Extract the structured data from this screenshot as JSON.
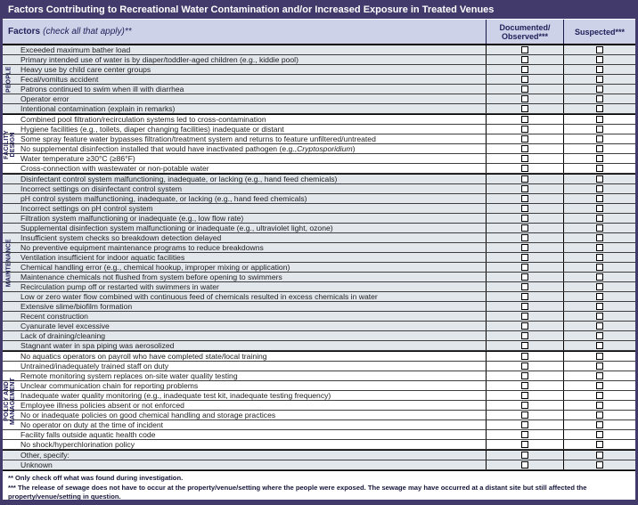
{
  "title": "Factors Contributing to Recreational Water Contamination and/or Increased Exposure in Treated Venues",
  "header": {
    "factors_bold": "Factors",
    "factors_italic": "(check all that apply)**",
    "documented_line1": "Documented/",
    "documented_line2": "Observed***",
    "suspected": "Suspected***"
  },
  "sections": [
    {
      "name": "people",
      "label_lines": [
        "PEOPLE"
      ],
      "shaded": true,
      "rows": [
        {
          "label": "Exceeded maximum bather load",
          "documented": false,
          "suspected": false
        },
        {
          "label": "Primary intended use of water is by diaper/toddler-aged children (e.g., kiddie pool)",
          "documented": false,
          "suspected": false
        },
        {
          "label": "Heavy use by child care center groups",
          "documented": false,
          "suspected": false
        },
        {
          "label": "Fecal/vomitus accident",
          "documented": false,
          "suspected": false
        },
        {
          "label": "Patrons continued to swim when ill with diarrhea",
          "documented": false,
          "suspected": false
        },
        {
          "label": "Operator error",
          "documented": false,
          "suspected": false
        },
        {
          "label": "Intentional contamination (explain in remarks)",
          "documented": false,
          "suspected": false
        }
      ]
    },
    {
      "name": "facility-design",
      "label_lines": [
        "FACILITY",
        "DESIGN"
      ],
      "shaded": false,
      "rows": [
        {
          "label": "Combined pool filtration/recirculation systems led to cross-contamination",
          "documented": false,
          "suspected": false
        },
        {
          "label": "Hygiene facilities (e.g., toilets, diaper changing facilities) inadequate or distant",
          "documented": false,
          "suspected": false
        },
        {
          "label": "Some spray feature water bypasses filtration/treatment system and returns to feature unfiltered/untreated",
          "documented": false,
          "suspected": false
        },
        {
          "label": "No supplemental disinfection installed that would have inactivated pathogen (e.g., Cryptosporidium)",
          "italic": "Cryptosporidium",
          "documented": false,
          "suspected": false
        },
        {
          "label": "Water temperature ≥30°C (≥86°F)",
          "documented": false,
          "suspected": false
        },
        {
          "label": "Cross-connection with wastewater or non-potable water",
          "documented": false,
          "suspected": false
        }
      ]
    },
    {
      "name": "maintenance",
      "label_lines": [
        "MAINTENANCE"
      ],
      "shaded": true,
      "rows": [
        {
          "label": "Disinfectant control system malfunctioning, inadequate, or lacking (e.g., hand feed chemicals)",
          "documented": false,
          "suspected": false
        },
        {
          "label": "Incorrect settings on disinfectant control system",
          "documented": false,
          "suspected": false
        },
        {
          "label": "pH control system malfunctioning, inadequate, or lacking (e.g., hand feed chemicals)",
          "documented": false,
          "suspected": false
        },
        {
          "label": "Incorrect settings on pH control system",
          "documented": false,
          "suspected": false
        },
        {
          "label": "Filtration system malfunctioning or inadequate (e.g., low flow rate)",
          "documented": false,
          "suspected": false
        },
        {
          "label": "Supplemental disinfection system malfunctioning or inadequate (e.g., ultraviolet light, ozone)",
          "documented": false,
          "suspected": false
        },
        {
          "label": "Insufficient system checks so breakdown detection delayed",
          "documented": false,
          "suspected": false
        },
        {
          "label": "No preventive equipment maintenance programs to reduce breakdowns",
          "documented": false,
          "suspected": false
        },
        {
          "label": "Ventilation insufficient for indoor aquatic facilities",
          "documented": false,
          "suspected": false
        },
        {
          "label": "Chemical handling error (e.g., chemical hookup, improper mixing or application)",
          "documented": false,
          "suspected": false
        },
        {
          "label": "Maintenance chemicals not flushed from system before opening to swimmers",
          "documented": false,
          "suspected": false
        },
        {
          "label": "Recirculation pump off or restarted with swimmers in water",
          "documented": false,
          "suspected": false
        },
        {
          "label": "Low or zero water flow combined with continuous feed of chemicals resulted in excess chemicals in water",
          "documented": false,
          "suspected": false
        },
        {
          "label": "Extensive slime/biofilm formation",
          "documented": false,
          "suspected": false
        },
        {
          "label": "Recent construction",
          "documented": false,
          "suspected": false
        },
        {
          "label": "Cyanurate level excessive",
          "documented": false,
          "suspected": false
        },
        {
          "label": "Lack of draining/cleaning",
          "documented": false,
          "suspected": false
        },
        {
          "label": "Stagnant water in spa piping was aerosolized",
          "documented": false,
          "suspected": false
        }
      ]
    },
    {
      "name": "policy-and-management",
      "label_lines": [
        "POLICY AND",
        "MANAGEMENT"
      ],
      "shaded": false,
      "rows": [
        {
          "label": "No aquatics operators on payroll who have completed state/local training",
          "documented": false,
          "suspected": false
        },
        {
          "label": "Untrained/inadequately trained staff on duty",
          "documented": false,
          "suspected": false
        },
        {
          "label": "Remote monitoring system replaces on-site water quality testing",
          "documented": false,
          "suspected": false
        },
        {
          "label": "Unclear communication chain for reporting problems",
          "documented": false,
          "suspected": false
        },
        {
          "label": "Inadequate water quality monitoring (e.g., inadequate test kit, inadequate testing frequency)",
          "documented": false,
          "suspected": false
        },
        {
          "label": "Employee illness policies absent or not enforced",
          "documented": false,
          "suspected": false
        },
        {
          "label": "No or inadequate policies on good chemical handling and storage practices",
          "documented": false,
          "suspected": false
        },
        {
          "label": "No operator on duty at the time of incident",
          "documented": false,
          "suspected": false
        },
        {
          "label": "Facility falls outside aquatic health code",
          "documented": false,
          "suspected": false
        },
        {
          "label": "No shock/hyperchlorination policy",
          "documented": false,
          "suspected": false
        }
      ]
    },
    {
      "name": "other",
      "label_lines": [],
      "shaded": true,
      "rows": [
        {
          "label": "Other, specify:",
          "documented": false,
          "suspected": false
        },
        {
          "label": "Unknown",
          "documented": false,
          "suspected": false
        }
      ]
    }
  ],
  "footnotes": [
    "** Only check off what was found during investigation.",
    "*** The release of sewage does not have to occur at the property/venue/setting where the people were exposed. The sewage may have occurred at a distant site but still affected the property/venue/setting in question."
  ],
  "colors": {
    "frame_purple": "#413a6b",
    "title_text": "#ffffff",
    "header_bg": "#cdd2e8",
    "header_text": "#22205a",
    "row_shaded_bg": "#e2e7ec",
    "row_text": "#222222",
    "grid_border": "#000000",
    "footnote_text": "#15153a"
  }
}
